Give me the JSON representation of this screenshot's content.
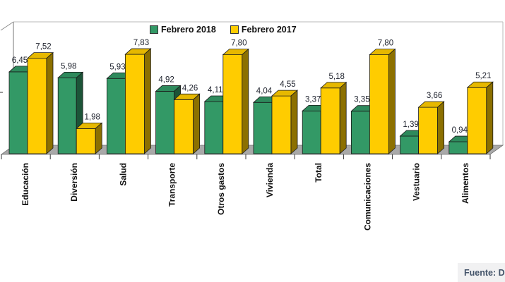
{
  "legend": {
    "items": [
      {
        "label": "Febrero 2018",
        "color": "#339966"
      },
      {
        "label": "Febrero 2017",
        "color": "#FFCC00"
      }
    ]
  },
  "source_note": "Fuente: D",
  "chart_data": {
    "type": "bar",
    "style": "3d-clustered-column",
    "categories": [
      "Educación",
      "Diversión",
      "Salud",
      "Transporte",
      "Otros gastos",
      "Vivienda",
      "Total",
      "Comunicaciones",
      "Vestuario",
      "Alimentos"
    ],
    "series": [
      {
        "name": "Febrero 2018",
        "color": "#339966",
        "values": [
          6.45,
          5.98,
          5.93,
          4.92,
          4.11,
          4.04,
          3.37,
          3.35,
          1.39,
          0.94
        ]
      },
      {
        "name": "Febrero 2017",
        "color": "#FFCC00",
        "values": [
          7.52,
          1.98,
          7.83,
          4.26,
          7.8,
          4.55,
          5.18,
          7.8,
          3.66,
          5.21
        ]
      }
    ],
    "value_label_decimal_separator": ",",
    "ylim": [
      0,
      8
    ],
    "grid": false,
    "legend_position": "top",
    "floor_color": "#a9a9a9",
    "axis_color": "#8c8c8c",
    "value_label_color": "#20242f",
    "category_label_color": "#111111"
  }
}
